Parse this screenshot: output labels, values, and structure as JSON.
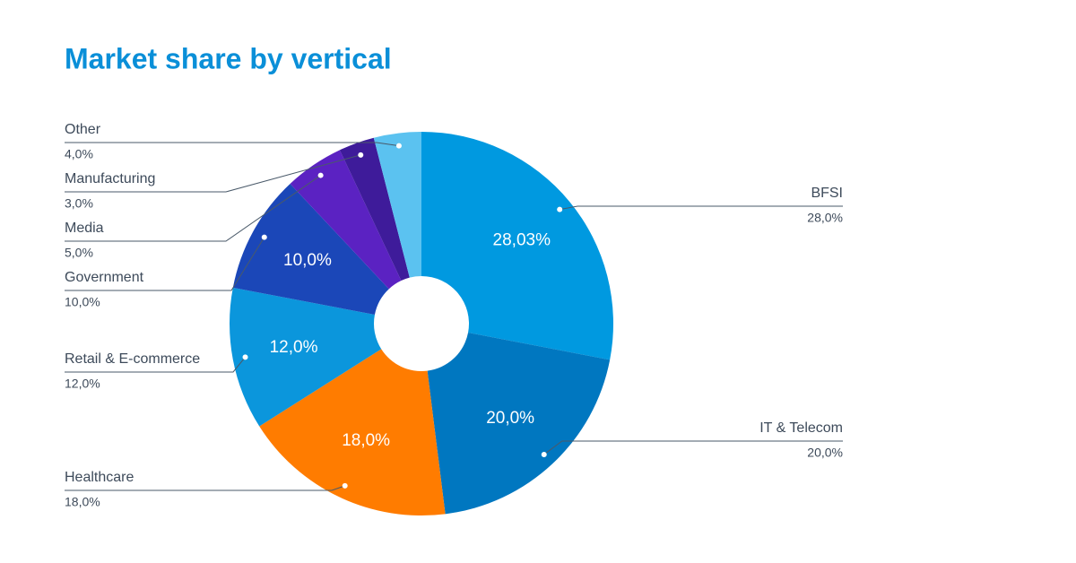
{
  "chart_data": {
    "type": "donut",
    "title": "Market share by vertical",
    "categories": [
      "BFSI",
      "IT & Telecom",
      "Healthcare",
      "Retail & E-commerce",
      "Government",
      "Media",
      "Manufacturing",
      "Other"
    ],
    "values": [
      28.03,
      20,
      18,
      12,
      10,
      5,
      3,
      4
    ],
    "value_labels": [
      "28,0%",
      "20,0%",
      "18,0%",
      "12,0%",
      "10,0%",
      "5,0%",
      "3,0%",
      "4,0%"
    ],
    "inner_labels": [
      "28,03%",
      "20,0%",
      "18,0%",
      "12,0%",
      "10,0%",
      null,
      null,
      null
    ],
    "colors": [
      "#0099e0",
      "#0077c0",
      "#ff7c00",
      "#0b96dc",
      "#1b47b8",
      "#5b22c2",
      "#3e1b9a",
      "#5bc2f0"
    ]
  }
}
